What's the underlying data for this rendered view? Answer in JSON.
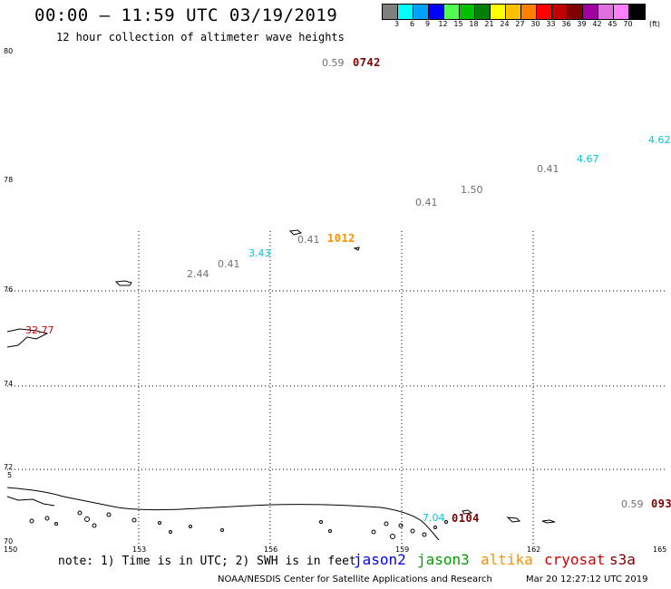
{
  "header": {
    "title": "00:00 – 11:59 UTC 03/19/2019",
    "subtitle": "12 hour collection of altimeter wave heights"
  },
  "colorbar": {
    "unit": "(ft)",
    "ticks": [
      "3",
      "6",
      "9",
      "12",
      "15",
      "18",
      "21",
      "24",
      "27",
      "30",
      "33",
      "36",
      "39",
      "42",
      "45",
      "70"
    ],
    "colors": [
      "#7f7f7f",
      "#00ffff",
      "#00a0ff",
      "#0000ff",
      "#50ff50",
      "#00c000",
      "#008000",
      "#ffff00",
      "#ffc000",
      "#ff8000",
      "#ff0000",
      "#c00000",
      "#800000",
      "#a000a0",
      "#e070e0",
      "#ff80ff",
      "#000000"
    ]
  },
  "axes": {
    "lat_labels": [
      "80",
      "78",
      "76",
      "74",
      "72",
      "70"
    ],
    "lon_labels": [
      "150",
      "153",
      "156",
      "159",
      "162",
      "165"
    ],
    "side_label": "5"
  },
  "observations": {
    "values": [
      {
        "text": "0.59",
        "color": "#707070"
      },
      {
        "text": "4.62",
        "color": "#00c8e0"
      },
      {
        "text": "4.67",
        "color": "#00c8e0"
      },
      {
        "text": "0.41",
        "color": "#707070"
      },
      {
        "text": "1.50",
        "color": "#707070"
      },
      {
        "text": "0.41",
        "color": "#707070"
      },
      {
        "text": "0.41",
        "color": "#707070"
      },
      {
        "text": "3.43",
        "color": "#00c8e0"
      },
      {
        "text": "0.41",
        "color": "#707070"
      },
      {
        "text": "2.44",
        "color": "#707070"
      },
      {
        "text": "32.77",
        "color": "#d00000"
      },
      {
        "text": "7.04",
        "color": "#00c8e0"
      },
      {
        "text": "0.59",
        "color": "#707070"
      }
    ],
    "times": [
      {
        "text": "0742",
        "color": "#800000"
      },
      {
        "text": "1012",
        "color": "#ff9000"
      },
      {
        "text": "0104",
        "color": "#800000"
      },
      {
        "text": "093",
        "color": "#800000"
      }
    ]
  },
  "footer": {
    "note": "note: 1) Time is in UTC; 2) SWH is in feet",
    "satellites": [
      {
        "name": "jason2",
        "color": "#0000ff"
      },
      {
        "name": "jason3",
        "color": "#00a000"
      },
      {
        "name": "altika",
        "color": "#ff9000"
      },
      {
        "name": "cryosat",
        "color": "#d00000"
      },
      {
        "name": "s3a",
        "color": "#800000"
      }
    ],
    "credit": "NOAA/NESDIS Center for Satellite Applications and Research",
    "timestamp": "Mar 20 12:27:12 UTC 2019"
  }
}
